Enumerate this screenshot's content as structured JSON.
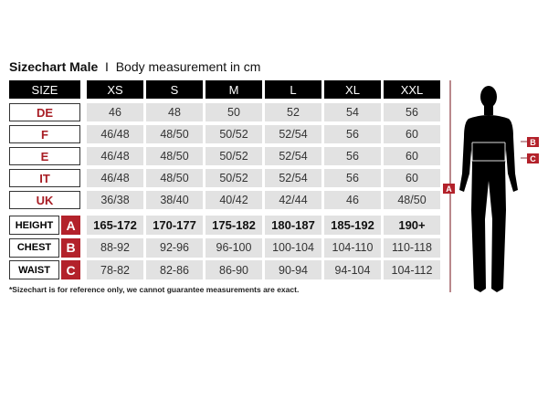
{
  "title": {
    "bold": "Sizechart Male",
    "separator": "I",
    "subtitle": "Body measurement in cm"
  },
  "header": {
    "size_label": "SIZE",
    "sizes": [
      "XS",
      "S",
      "M",
      "L",
      "XL",
      "XXL"
    ]
  },
  "conversion_rows": [
    {
      "label": "DE",
      "values": [
        "46",
        "48",
        "50",
        "52",
        "54",
        "56"
      ]
    },
    {
      "label": "F",
      "values": [
        "46/48",
        "48/50",
        "50/52",
        "52/54",
        "56",
        "60"
      ]
    },
    {
      "label": "E",
      "values": [
        "46/48",
        "48/50",
        "50/52",
        "52/54",
        "56",
        "60"
      ]
    },
    {
      "label": "IT",
      "values": [
        "46/48",
        "48/50",
        "50/52",
        "52/54",
        "56",
        "60"
      ]
    },
    {
      "label": "UK",
      "values": [
        "36/38",
        "38/40",
        "40/42",
        "42/44",
        "46",
        "48/50"
      ]
    }
  ],
  "measurement_rows": [
    {
      "label": "HEIGHT",
      "letter": "A",
      "values": [
        "165-172",
        "170-177",
        "175-182",
        "180-187",
        "185-192",
        "190+"
      ]
    },
    {
      "label": "CHEST",
      "letter": "B",
      "values": [
        "88-92",
        "92-96",
        "96-100",
        "100-104",
        "104-110",
        "110-118"
      ]
    },
    {
      "label": "WAIST",
      "letter": "C",
      "values": [
        "78-82",
        "82-86",
        "86-90",
        "90-94",
        "94-104",
        "104-112"
      ]
    }
  ],
  "footnote": "*Sizechart is for reference only, we cannot guarantee measurements are exact.",
  "figure": {
    "markers": {
      "height": "A",
      "chest": "B",
      "waist": "C"
    }
  },
  "colors": {
    "accent": "#b3222b",
    "header": "#000000",
    "cell": "#e2e2e2"
  }
}
